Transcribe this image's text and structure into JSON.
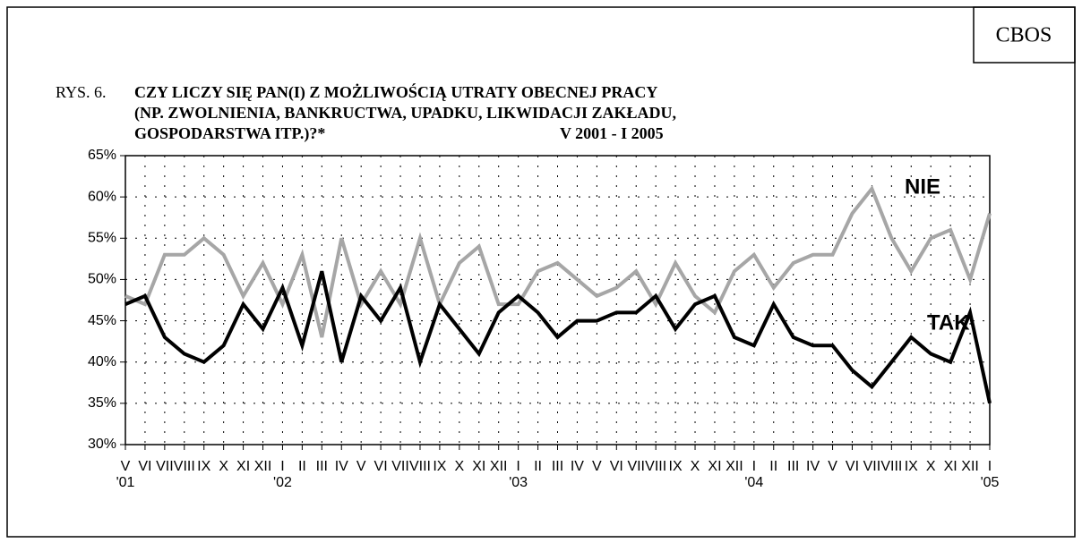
{
  "chart_data": {
    "type": "line",
    "badge": "CBOS",
    "figure_label": "RYS. 6.",
    "title_lines": [
      "CZY LICZY SIĘ PAN(I) Z MOŻLIWOŚCIĄ UTRATY OBECNEJ PRACY",
      "(NP. ZWOLNIENIA, BANKRUCTWA, UPADKU, LIKWIDACJI ZAKŁADU,",
      "GOSPODARSTWA ITP.)?*"
    ],
    "period": "V 2001 - I 2005",
    "categories": [
      "V",
      "VI",
      "VII",
      "VIII",
      "IX",
      "X",
      "XI",
      "XII",
      "I",
      "II",
      "III",
      "IV",
      "V",
      "VI",
      "VII",
      "VIII",
      "IX",
      "X",
      "XI",
      "XII",
      "I",
      "II",
      "III",
      "IV",
      "V",
      "VI",
      "VII",
      "VIII",
      "IX",
      "X",
      "XI",
      "XII",
      "I",
      "II",
      "III",
      "IV",
      "V",
      "VI",
      "VII",
      "VIII",
      "IX",
      "X",
      "XI",
      "XII",
      "I"
    ],
    "category_years": [
      "'01",
      null,
      null,
      null,
      null,
      null,
      null,
      null,
      "'02",
      null,
      null,
      null,
      null,
      null,
      null,
      null,
      null,
      null,
      null,
      null,
      "'03",
      null,
      null,
      null,
      null,
      null,
      null,
      null,
      null,
      null,
      null,
      null,
      "'04",
      null,
      null,
      null,
      null,
      null,
      null,
      null,
      null,
      null,
      null,
      null,
      "'05"
    ],
    "series": [
      {
        "name": "NIE",
        "color": "#a6a6a6",
        "values": [
          48,
          47,
          53,
          53,
          55,
          53,
          48,
          52,
          47,
          53,
          43,
          55,
          47,
          51,
          47,
          55,
          47,
          52,
          54,
          47,
          47,
          51,
          52,
          50,
          48,
          49,
          51,
          47,
          52,
          48,
          46,
          51,
          53,
          49,
          52,
          53,
          53,
          58,
          61,
          55,
          51,
          55,
          56,
          50,
          58
        ]
      },
      {
        "name": "TAK",
        "color": "#000000",
        "values": [
          47,
          48,
          43,
          41,
          40,
          42,
          47,
          44,
          49,
          42,
          51,
          40,
          48,
          45,
          49,
          40,
          47,
          44,
          41,
          46,
          48,
          46,
          43,
          45,
          45,
          46,
          46,
          48,
          44,
          47,
          48,
          43,
          42,
          47,
          43,
          42,
          42,
          39,
          37,
          40,
          43,
          41,
          40,
          46,
          35
        ]
      }
    ],
    "ylim": [
      30,
      65
    ],
    "yticks": [
      {
        "value": 30,
        "label": "30%"
      },
      {
        "value": 35,
        "label": "35%"
      },
      {
        "value": 40,
        "label": "40%"
      },
      {
        "value": 45,
        "label": "45%"
      },
      {
        "value": 50,
        "label": "50%"
      },
      {
        "value": 55,
        "label": "55%"
      },
      {
        "value": 60,
        "label": "60%"
      },
      {
        "value": 65,
        "label": "65%"
      }
    ],
    "grid": true
  }
}
